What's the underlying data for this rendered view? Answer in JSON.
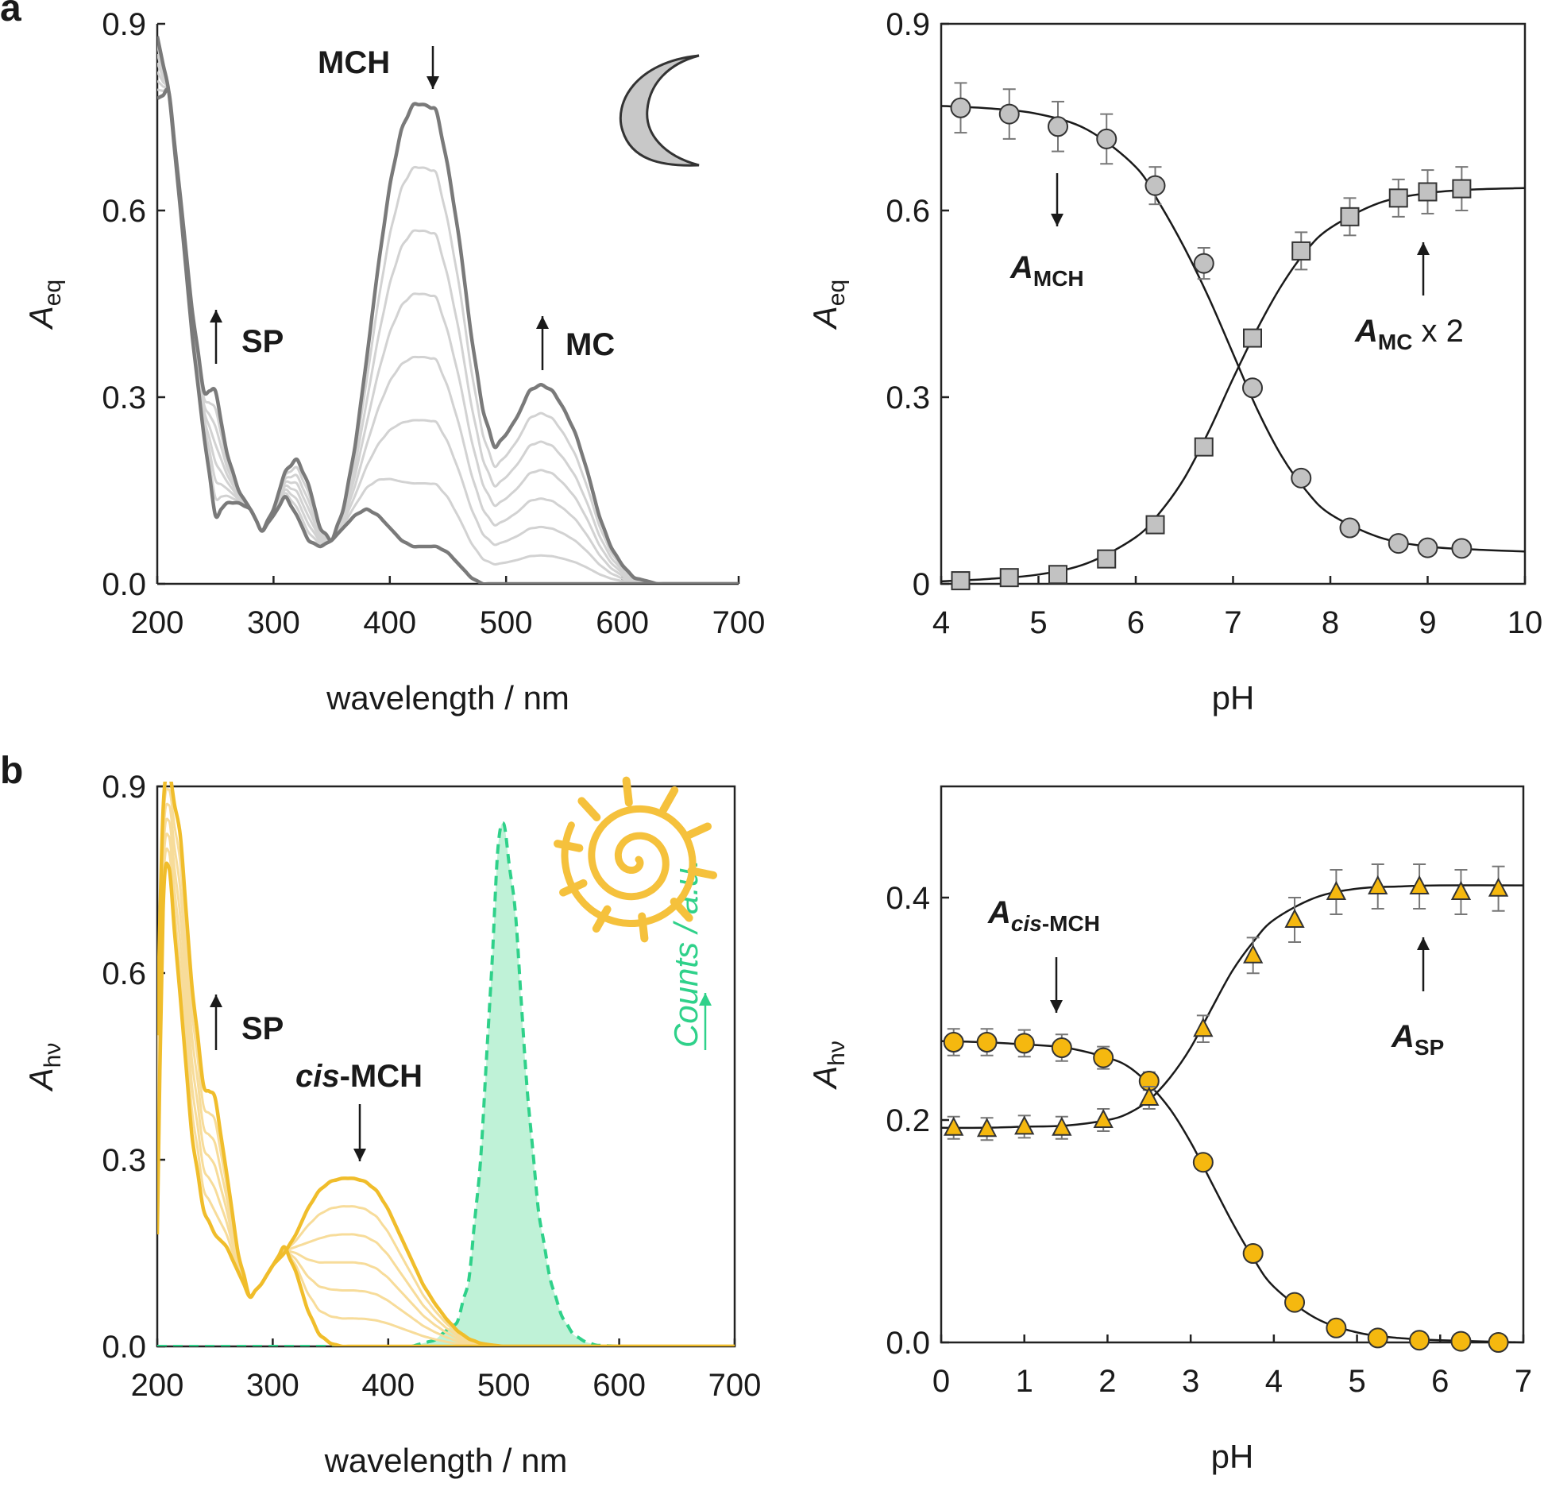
{
  "colors": {
    "gray_dark": "#7a7a7a",
    "gray_light": "#d2d2d2",
    "marker_gray": "#c2c2c2",
    "yellow_dark": "#f0bd2b",
    "yellow_light": "#f7dc9a",
    "marker_yellow": "#f5b80f",
    "green": "#2fd18a",
    "green_fill": "#bff2d7",
    "moon_fill": "#c8c8c8",
    "sun": "#f5c13c"
  },
  "icons": {
    "panel_a": "moon-icon",
    "panel_b": "sun-icon"
  },
  "chart_data": [
    {
      "id": "a-left",
      "panel_label": "a",
      "type": "line",
      "xlabel": "wavelength / nm",
      "ylabel_main": "A",
      "ylabel_sub": "eq",
      "xlim": [
        200,
        700
      ],
      "ylim": [
        0,
        0.9
      ],
      "xticks": [
        200,
        300,
        400,
        500,
        600,
        700
      ],
      "yticks": [
        "0.0",
        "0.3",
        "0.6",
        "0.9"
      ],
      "yticks_values": [
        0,
        0.3,
        0.6,
        0.9
      ],
      "annotations": [
        {
          "text": "MCH",
          "x": 300,
          "y": 0.84,
          "arrow": "down"
        },
        {
          "text": "SP",
          "x": 235,
          "y": 0.34,
          "arrow": "up"
        },
        {
          "text": "MC",
          "x": 545,
          "y": 0.33,
          "arrow": "up"
        }
      ],
      "series": [
        {
          "values": {
            "x": [
              200,
              210,
              220,
              230,
              240,
              250,
              260,
              270,
              280,
              290,
              300,
              310,
              320,
              330,
              340,
              350,
              360,
              370,
              380,
              390,
              400,
              410,
              420,
              430,
              440,
              450,
              460,
              470,
              480,
              490,
              500,
              510,
              520,
              530,
              540,
              550,
              560,
              570,
              580,
              590,
              600,
              610,
              620,
              630,
              640,
              650,
              700
            ],
            "y": [
              0.88,
              0.79,
              0.6,
              0.4,
              0.24,
              0.11,
              0.13,
              0.13,
              0.12,
              0.085,
              0.11,
              0.14,
              0.11,
              0.07,
              0.06,
              0.07,
              0.09,
              0.11,
              0.12,
              0.11,
              0.09,
              0.07,
              0.06,
              0.06,
              0.06,
              0.05,
              0.03,
              0.01,
              0,
              0,
              0,
              0,
              0,
              0,
              0,
              0,
              0,
              0,
              0,
              0,
              0,
              0,
              0,
              0,
              0,
              0,
              0
            ]
          }
        },
        {
          "values": {
            "x": [
              200,
              210,
              220,
              230,
              240,
              250,
              260,
              270,
              280,
              290,
              300,
              310,
              320,
              330,
              340,
              350,
              360,
              370,
              380,
              390,
              400,
              410,
              420,
              430,
              440,
              450,
              460,
              470,
              480,
              490,
              500,
              510,
              520,
              530,
              540,
              550,
              560,
              570,
              580,
              590,
              600,
              610,
              620,
              630,
              640,
              650,
              700
            ],
            "y": [
              0.78,
              0.79,
              0.62,
              0.44,
              0.31,
              0.31,
              0.21,
              0.15,
              0.12,
              0.085,
              0.12,
              0.18,
              0.2,
              0.16,
              0.09,
              0.07,
              0.12,
              0.22,
              0.36,
              0.51,
              0.64,
              0.73,
              0.77,
              0.77,
              0.76,
              0.67,
              0.55,
              0.4,
              0.28,
              0.22,
              0.24,
              0.27,
              0.31,
              0.32,
              0.31,
              0.28,
              0.24,
              0.18,
              0.11,
              0.06,
              0.03,
              0.01,
              0.005,
              0,
              0,
              0,
              0
            ]
          }
        }
      ]
    },
    {
      "id": "a-right",
      "type": "scatter",
      "xlabel": "pH",
      "ylabel_main": "A",
      "ylabel_sub": "eq",
      "xlim": [
        4,
        10
      ],
      "ylim": [
        0,
        0.9
      ],
      "xticks": [
        4,
        5,
        6,
        7,
        8,
        9,
        10
      ],
      "yticks": [
        "0",
        "0.3",
        "0.6",
        "0.9"
      ],
      "yticks_values": [
        0,
        0.3,
        0.6,
        0.9
      ],
      "annotations": [
        {
          "main": "A",
          "sub": "MCH",
          "x": 5.2,
          "y": 0.5,
          "arrow": "down"
        },
        {
          "main": "A",
          "sub": "MC",
          "suffix": " x 2",
          "x": 9.0,
          "y": 0.4,
          "arrow": "up"
        }
      ],
      "series": [
        {
          "name": "",
          "marker": "circle",
          "x": [
            4.2,
            4.7,
            5.2,
            5.7,
            6.2,
            6.7,
            7.2,
            7.7,
            8.2,
            8.7,
            9.0,
            9.35
          ],
          "y": [
            0.765,
            0.755,
            0.735,
            0.715,
            0.64,
            0.515,
            0.315,
            0.17,
            0.09,
            0.065,
            0.058,
            0.057
          ],
          "err": [
            0.04,
            0.04,
            0.04,
            0.04,
            0.03,
            0.025,
            0.01,
            0.01,
            0.01,
            0.01,
            0.005,
            0.005
          ]
        },
        {
          "name": "",
          "marker": "square",
          "x": [
            4.2,
            4.7,
            5.2,
            5.7,
            6.2,
            6.7,
            7.2,
            7.7,
            8.2,
            8.7,
            9.0,
            9.35
          ],
          "y": [
            0.005,
            0.01,
            0.015,
            0.04,
            0.095,
            0.22,
            0.395,
            0.535,
            0.59,
            0.62,
            0.63,
            0.635
          ],
          "err": [
            0.005,
            0.005,
            0.005,
            0.005,
            0.005,
            0.005,
            0.01,
            0.03,
            0.03,
            0.03,
            0.035,
            0.035
          ]
        }
      ],
      "fit_curves": [
        {
          "x": [
            4.0,
            4.5,
            5.0,
            5.5,
            6.0,
            6.25,
            6.5,
            6.75,
            7.0,
            7.25,
            7.5,
            7.75,
            8.0,
            8.5,
            9.0,
            9.5,
            10.0
          ],
          "y": [
            0.768,
            0.764,
            0.755,
            0.73,
            0.67,
            0.61,
            0.54,
            0.46,
            0.37,
            0.28,
            0.205,
            0.15,
            0.112,
            0.075,
            0.06,
            0.055,
            0.052
          ]
        },
        {
          "x": [
            4.0,
            4.5,
            5.0,
            5.5,
            6.0,
            6.25,
            6.5,
            6.75,
            7.0,
            7.25,
            7.5,
            7.75,
            8.0,
            8.5,
            9.0,
            9.5,
            10.0
          ],
          "y": [
            0.004,
            0.008,
            0.015,
            0.033,
            0.075,
            0.115,
            0.17,
            0.245,
            0.33,
            0.41,
            0.48,
            0.535,
            0.572,
            0.612,
            0.628,
            0.634,
            0.636
          ]
        }
      ]
    },
    {
      "id": "b-left",
      "panel_label": "b",
      "type": "line",
      "xlabel": "wavelength / nm",
      "ylabel_main": "A",
      "ylabel_sub": "hν",
      "y2label": "Counts / a.u.",
      "xlim": [
        200,
        700
      ],
      "ylim": [
        0,
        0.9
      ],
      "xticks": [
        200,
        300,
        400,
        500,
        600,
        700
      ],
      "yticks": [
        "0.0",
        "0.3",
        "0.6",
        "0.9"
      ],
      "yticks_values": [
        0,
        0.3,
        0.6,
        0.9
      ],
      "annotations": [
        {
          "text": "SP",
          "x": 235,
          "y": 0.52,
          "arrow": "up"
        },
        {
          "italic": "cis",
          "text": "-MCH",
          "x": 370,
          "y": 0.43,
          "arrow": "down"
        }
      ],
      "series": [
        {
          "values": {
            "x": [
              200,
              205,
              210,
              220,
              230,
              240,
              250,
              260,
              270,
              280,
              290,
              300,
              310,
              320,
              330,
              340,
              350,
              360,
              380,
              400,
              700
            ],
            "y": [
              0.18,
              0.7,
              0.77,
              0.56,
              0.34,
              0.22,
              0.18,
              0.16,
              0.12,
              0.08,
              0.1,
              0.13,
              0.16,
              0.12,
              0.06,
              0.02,
              0.005,
              0,
              0,
              0,
              0
            ]
          }
        },
        {
          "values": {
            "x": [
              200,
              205,
              210,
              220,
              230,
              240,
              250,
              260,
              270,
              280,
              290,
              300,
              310,
              320,
              330,
              340,
              350,
              360,
              370,
              380,
              390,
              400,
              410,
              420,
              430,
              440,
              450,
              460,
              470,
              480,
              490,
              500,
              700
            ],
            "y": [
              0.5,
              0.86,
              0.92,
              0.82,
              0.58,
              0.42,
              0.4,
              0.28,
              0.15,
              0.08,
              0.1,
              0.13,
              0.15,
              0.18,
              0.22,
              0.25,
              0.265,
              0.27,
              0.27,
              0.265,
              0.25,
              0.22,
              0.18,
              0.14,
              0.1,
              0.07,
              0.045,
              0.025,
              0.012,
              0.005,
              0.002,
              0,
              0
            ]
          }
        }
      ],
      "emission": {
        "x": [
          420,
          440,
          460,
          470,
          480,
          490,
          495,
          500,
          510,
          520,
          530,
          540,
          550,
          560,
          570,
          580,
          600,
          700
        ],
        "y": [
          0,
          0.01,
          0.04,
          0.11,
          0.3,
          0.62,
          0.8,
          0.84,
          0.7,
          0.42,
          0.22,
          0.11,
          0.05,
          0.02,
          0.008,
          0.002,
          0,
          0
        ]
      }
    },
    {
      "id": "b-right",
      "type": "scatter",
      "xlabel": "pH",
      "ylabel_main": "A",
      "ylabel_sub": "hν",
      "xlim": [
        0,
        7
      ],
      "ylim": [
        0,
        0.5
      ],
      "xticks": [
        0,
        1,
        2,
        3,
        4,
        5,
        6,
        7
      ],
      "yticks": [
        "0.0",
        "0.2",
        "0.4"
      ],
      "yticks_values": [
        0,
        0.2,
        0.4
      ],
      "annotations": [
        {
          "main": "A",
          "sub_italic": "cis",
          "sub": "-MCH",
          "x": 1.4,
          "y": 0.34,
          "arrow": "down"
        },
        {
          "main": "A",
          "sub": "SP",
          "x": 5.9,
          "y": 0.23,
          "arrow": "up"
        }
      ],
      "series": [
        {
          "name": "",
          "marker": "circle",
          "x": [
            0.15,
            0.55,
            1.0,
            1.45,
            1.95,
            2.5,
            3.15,
            3.75,
            4.25,
            4.75,
            5.25,
            5.75,
            6.25,
            6.7
          ],
          "y": [
            0.27,
            0.27,
            0.269,
            0.265,
            0.256,
            0.235,
            0.162,
            0.08,
            0.036,
            0.013,
            0.004,
            0.002,
            0.001,
            0.0
          ],
          "err": [
            0.012,
            0.012,
            0.012,
            0.012,
            0.01,
            0.008,
            0.0,
            0.0,
            0.0,
            0.0,
            0.0,
            0.0,
            0.0,
            0.0
          ]
        },
        {
          "name": "",
          "marker": "triangle",
          "x": [
            0.15,
            0.55,
            1.0,
            1.45,
            1.95,
            2.5,
            3.15,
            3.75,
            4.25,
            4.75,
            5.25,
            5.75,
            6.25,
            6.7
          ],
          "y": [
            0.193,
            0.192,
            0.194,
            0.193,
            0.2,
            0.22,
            0.282,
            0.348,
            0.38,
            0.405,
            0.41,
            0.41,
            0.405,
            0.408
          ],
          "err": [
            0.01,
            0.01,
            0.01,
            0.01,
            0.01,
            0.01,
            0.012,
            0.016,
            0.02,
            0.02,
            0.02,
            0.02,
            0.02,
            0.02
          ]
        }
      ],
      "fit_curves": [
        {
          "x": [
            0,
            0.5,
            1.0,
            1.5,
            2.0,
            2.25,
            2.5,
            2.75,
            3.0,
            3.25,
            3.5,
            3.75,
            4.0,
            4.5,
            5.0,
            5.5,
            6.0,
            7.0
          ],
          "y": [
            0.271,
            0.27,
            0.268,
            0.265,
            0.256,
            0.248,
            0.232,
            0.21,
            0.18,
            0.144,
            0.108,
            0.076,
            0.05,
            0.022,
            0.009,
            0.004,
            0.002,
            0.0
          ]
        },
        {
          "x": [
            0,
            0.5,
            1.0,
            1.5,
            2.0,
            2.25,
            2.5,
            2.75,
            3.0,
            3.25,
            3.5,
            3.75,
            4.0,
            4.5,
            5.0,
            5.5,
            6.0,
            7.0
          ],
          "y": [
            0.193,
            0.193,
            0.194,
            0.195,
            0.2,
            0.206,
            0.218,
            0.238,
            0.265,
            0.3,
            0.334,
            0.36,
            0.38,
            0.4,
            0.408,
            0.41,
            0.411,
            0.411
          ]
        }
      ]
    }
  ]
}
